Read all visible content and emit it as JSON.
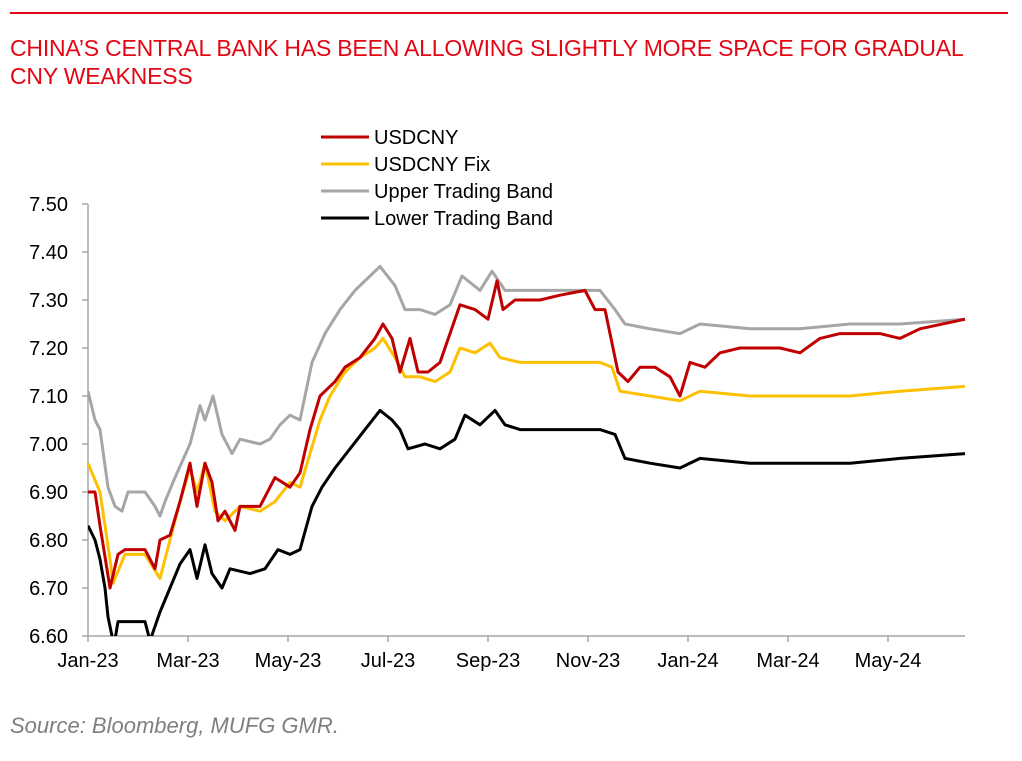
{
  "title": "CHINA’S CENTRAL BANK HAS BEEN ALLOWING SLIGHTLY MORE SPACE FOR GRADUAL CNY WEAKNESS",
  "source": "Source: Bloomberg, MUFG GMR.",
  "chart_data": {
    "type": "line",
    "title": "CHINA’S CENTRAL BANK HAS BEEN ALLOWING SLIGHTLY MORE SPACE FOR GRADUAL CNY WEAKNESS",
    "x_unit": "months since Jan-2023",
    "xlim": [
      0,
      17.54
    ],
    "ylim": [
      6.6,
      7.5
    ],
    "yticks": [
      "7.50",
      "7.40",
      "7.30",
      "7.20",
      "7.10",
      "7.00",
      "6.90",
      "6.80",
      "6.70",
      "6.60"
    ],
    "ytick_values": [
      7.5,
      7.4,
      7.3,
      7.2,
      7.1,
      7.0,
      6.9,
      6.8,
      6.7,
      6.6
    ],
    "xticks": [
      "Jan-23",
      "Mar-23",
      "May-23",
      "Jul-23",
      "Sep-23",
      "Nov-23",
      "Jan-24",
      "Mar-24",
      "May-24"
    ],
    "xtick_values": [
      0,
      2,
      4,
      6,
      8,
      10,
      12,
      14,
      16
    ],
    "legend_position": "top-center",
    "grid": false,
    "series": [
      {
        "name": "USDCNY",
        "color": "#c00000",
        "points": [
          [
            0,
            6.9
          ],
          [
            0.14,
            6.9
          ],
          [
            0.24,
            6.83
          ],
          [
            0.44,
            6.7
          ],
          [
            0.6,
            6.77
          ],
          [
            0.74,
            6.78
          ],
          [
            1.14,
            6.78
          ],
          [
            1.34,
            6.74
          ],
          [
            1.44,
            6.8
          ],
          [
            1.64,
            6.81
          ],
          [
            1.84,
            6.88
          ],
          [
            2.04,
            6.96
          ],
          [
            2.18,
            6.87
          ],
          [
            2.34,
            6.96
          ],
          [
            2.48,
            6.92
          ],
          [
            2.6,
            6.84
          ],
          [
            2.74,
            6.86
          ],
          [
            2.94,
            6.82
          ],
          [
            3.04,
            6.87
          ],
          [
            3.44,
            6.87
          ],
          [
            3.74,
            6.93
          ],
          [
            4.04,
            6.91
          ],
          [
            4.24,
            6.94
          ],
          [
            4.44,
            7.03
          ],
          [
            4.64,
            7.1
          ],
          [
            4.94,
            7.13
          ],
          [
            5.14,
            7.16
          ],
          [
            5.44,
            7.18
          ],
          [
            5.74,
            7.22
          ],
          [
            5.9,
            7.25
          ],
          [
            6.08,
            7.22
          ],
          [
            6.24,
            7.15
          ],
          [
            6.44,
            7.22
          ],
          [
            6.6,
            7.15
          ],
          [
            6.8,
            7.15
          ],
          [
            7.04,
            7.17
          ],
          [
            7.24,
            7.23
          ],
          [
            7.44,
            7.29
          ],
          [
            7.74,
            7.28
          ],
          [
            8,
            7.26
          ],
          [
            8.18,
            7.34
          ],
          [
            8.3,
            7.28
          ],
          [
            8.54,
            7.3
          ],
          [
            9.04,
            7.3
          ],
          [
            9.44,
            7.31
          ],
          [
            9.94,
            7.32
          ],
          [
            10.14,
            7.28
          ],
          [
            10.34,
            7.28
          ],
          [
            10.6,
            7.15
          ],
          [
            10.8,
            7.13
          ],
          [
            11.04,
            7.16
          ],
          [
            11.34,
            7.16
          ],
          [
            11.64,
            7.14
          ],
          [
            11.84,
            7.1
          ],
          [
            12.04,
            7.17
          ],
          [
            12.34,
            7.16
          ],
          [
            12.64,
            7.19
          ],
          [
            13.04,
            7.2
          ],
          [
            13.84,
            7.2
          ],
          [
            14.24,
            7.19
          ],
          [
            14.64,
            7.22
          ],
          [
            15.04,
            7.23
          ],
          [
            15.84,
            7.23
          ],
          [
            16.24,
            7.22
          ],
          [
            16.64,
            7.24
          ],
          [
            17.54,
            7.26
          ]
        ]
      },
      {
        "name": "USDCNY Fix",
        "color": "#ffc000",
        "points": [
          [
            0,
            6.96
          ],
          [
            0.24,
            6.9
          ],
          [
            0.44,
            6.76
          ],
          [
            0.5,
            6.71
          ],
          [
            0.74,
            6.77
          ],
          [
            1.14,
            6.77
          ],
          [
            1.44,
            6.72
          ],
          [
            1.64,
            6.8
          ],
          [
            1.84,
            6.88
          ],
          [
            2.04,
            6.95
          ],
          [
            2.18,
            6.9
          ],
          [
            2.34,
            6.96
          ],
          [
            2.54,
            6.86
          ],
          [
            2.74,
            6.84
          ],
          [
            3.04,
            6.87
          ],
          [
            3.44,
            6.86
          ],
          [
            3.74,
            6.88
          ],
          [
            4.04,
            6.92
          ],
          [
            4.24,
            6.91
          ],
          [
            4.44,
            6.98
          ],
          [
            4.64,
            7.05
          ],
          [
            4.84,
            7.1
          ],
          [
            5.14,
            7.15
          ],
          [
            5.44,
            7.18
          ],
          [
            5.74,
            7.2
          ],
          [
            5.9,
            7.22
          ],
          [
            6.14,
            7.18
          ],
          [
            6.34,
            7.14
          ],
          [
            6.64,
            7.14
          ],
          [
            6.94,
            7.13
          ],
          [
            7.24,
            7.15
          ],
          [
            7.44,
            7.2
          ],
          [
            7.74,
            7.19
          ],
          [
            8.04,
            7.21
          ],
          [
            8.24,
            7.18
          ],
          [
            8.64,
            7.17
          ],
          [
            10.24,
            7.17
          ],
          [
            10.48,
            7.16
          ],
          [
            10.64,
            7.11
          ],
          [
            11.24,
            7.1
          ],
          [
            11.84,
            7.09
          ],
          [
            12.24,
            7.11
          ],
          [
            13.24,
            7.1
          ],
          [
            14.24,
            7.1
          ],
          [
            15.24,
            7.1
          ],
          [
            16.24,
            7.11
          ],
          [
            17.54,
            7.12
          ]
        ]
      },
      {
        "name": "Upper Trading Band",
        "color": "#a6a6a6",
        "points": [
          [
            0,
            7.11
          ],
          [
            0.14,
            7.05
          ],
          [
            0.24,
            7.03
          ],
          [
            0.4,
            6.91
          ],
          [
            0.54,
            6.87
          ],
          [
            0.68,
            6.86
          ],
          [
            0.8,
            6.9
          ],
          [
            1.14,
            6.9
          ],
          [
            1.34,
            6.87
          ],
          [
            1.44,
            6.85
          ],
          [
            1.54,
            6.88
          ],
          [
            1.74,
            6.93
          ],
          [
            2.04,
            7.0
          ],
          [
            2.24,
            7.08
          ],
          [
            2.34,
            7.05
          ],
          [
            2.5,
            7.1
          ],
          [
            2.68,
            7.02
          ],
          [
            2.88,
            6.98
          ],
          [
            3.04,
            7.01
          ],
          [
            3.44,
            7.0
          ],
          [
            3.64,
            7.01
          ],
          [
            3.84,
            7.04
          ],
          [
            4.04,
            7.06
          ],
          [
            4.24,
            7.05
          ],
          [
            4.48,
            7.17
          ],
          [
            4.74,
            7.23
          ],
          [
            5.04,
            7.28
          ],
          [
            5.34,
            7.32
          ],
          [
            5.64,
            7.35
          ],
          [
            5.84,
            7.37
          ],
          [
            6.14,
            7.33
          ],
          [
            6.34,
            7.28
          ],
          [
            6.64,
            7.28
          ],
          [
            6.94,
            7.27
          ],
          [
            7.24,
            7.29
          ],
          [
            7.48,
            7.35
          ],
          [
            7.84,
            7.32
          ],
          [
            8.08,
            7.36
          ],
          [
            8.34,
            7.32
          ],
          [
            8.64,
            7.32
          ],
          [
            9.44,
            7.32
          ],
          [
            10.24,
            7.32
          ],
          [
            10.54,
            7.28
          ],
          [
            10.74,
            7.25
          ],
          [
            11.24,
            7.24
          ],
          [
            11.84,
            7.23
          ],
          [
            12.24,
            7.25
          ],
          [
            13.24,
            7.24
          ],
          [
            14.24,
            7.24
          ],
          [
            15.24,
            7.25
          ],
          [
            16.24,
            7.25
          ],
          [
            17.54,
            7.26
          ]
        ]
      },
      {
        "name": "Lower Trading Band",
        "color": "#000000",
        "points": [
          [
            0,
            6.83
          ],
          [
            0.14,
            6.8
          ],
          [
            0.24,
            6.76
          ],
          [
            0.34,
            6.7
          ],
          [
            0.4,
            6.64
          ],
          [
            0.52,
            6.58
          ],
          [
            0.6,
            6.63
          ],
          [
            1.14,
            6.63
          ],
          [
            1.24,
            6.59
          ],
          [
            1.44,
            6.65
          ],
          [
            1.64,
            6.7
          ],
          [
            1.84,
            6.75
          ],
          [
            2.04,
            6.78
          ],
          [
            2.18,
            6.72
          ],
          [
            2.34,
            6.79
          ],
          [
            2.48,
            6.73
          ],
          [
            2.68,
            6.7
          ],
          [
            2.84,
            6.74
          ],
          [
            3.24,
            6.73
          ],
          [
            3.54,
            6.74
          ],
          [
            3.8,
            6.78
          ],
          [
            4.04,
            6.77
          ],
          [
            4.24,
            6.78
          ],
          [
            4.48,
            6.87
          ],
          [
            4.68,
            6.91
          ],
          [
            4.94,
            6.95
          ],
          [
            5.24,
            6.99
          ],
          [
            5.54,
            7.03
          ],
          [
            5.84,
            7.07
          ],
          [
            6.08,
            7.05
          ],
          [
            6.24,
            7.03
          ],
          [
            6.4,
            6.99
          ],
          [
            6.74,
            7.0
          ],
          [
            7.04,
            6.99
          ],
          [
            7.34,
            7.01
          ],
          [
            7.54,
            7.06
          ],
          [
            7.84,
            7.04
          ],
          [
            8.14,
            7.07
          ],
          [
            8.34,
            7.04
          ],
          [
            8.64,
            7.03
          ],
          [
            10.24,
            7.03
          ],
          [
            10.54,
            7.02
          ],
          [
            10.74,
            6.97
          ],
          [
            11.24,
            6.96
          ],
          [
            11.84,
            6.95
          ],
          [
            12.24,
            6.97
          ],
          [
            13.24,
            6.96
          ],
          [
            14.24,
            6.96
          ],
          [
            15.24,
            6.96
          ],
          [
            16.24,
            6.97
          ],
          [
            17.54,
            6.98
          ]
        ]
      }
    ]
  }
}
